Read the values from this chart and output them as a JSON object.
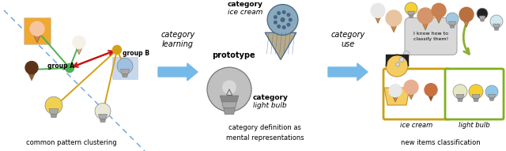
{
  "bg_color": "#ffffff",
  "section1_label": "common pattern clustering",
  "section2_label": "category definition as\nmental representations",
  "section3_label": "new items classification",
  "arrow1_label": "category\nlearning",
  "arrow2_label": "category\nuse",
  "groupA_label": "group A",
  "groupB_label": "group B",
  "proto_label": "prototype",
  "cat_ice_bold": "category",
  "cat_ice_italic": "ice cream",
  "cat_bulb_bold": "category",
  "cat_bulb_italic": "light bulb",
  "icecream_label": "ice cream",
  "lightbulb_label": "light bulb",
  "speech_text": "I know how to\nclassify them!",
  "arrow_color": "#74b9e8",
  "green_color": "#50b050",
  "gold_color": "#d4a017",
  "red_color": "#cc1111",
  "blue_dash_color": "#4488cc",
  "green_arrow_color": "#8ab030",
  "gold_arrow_color": "#c8900a"
}
